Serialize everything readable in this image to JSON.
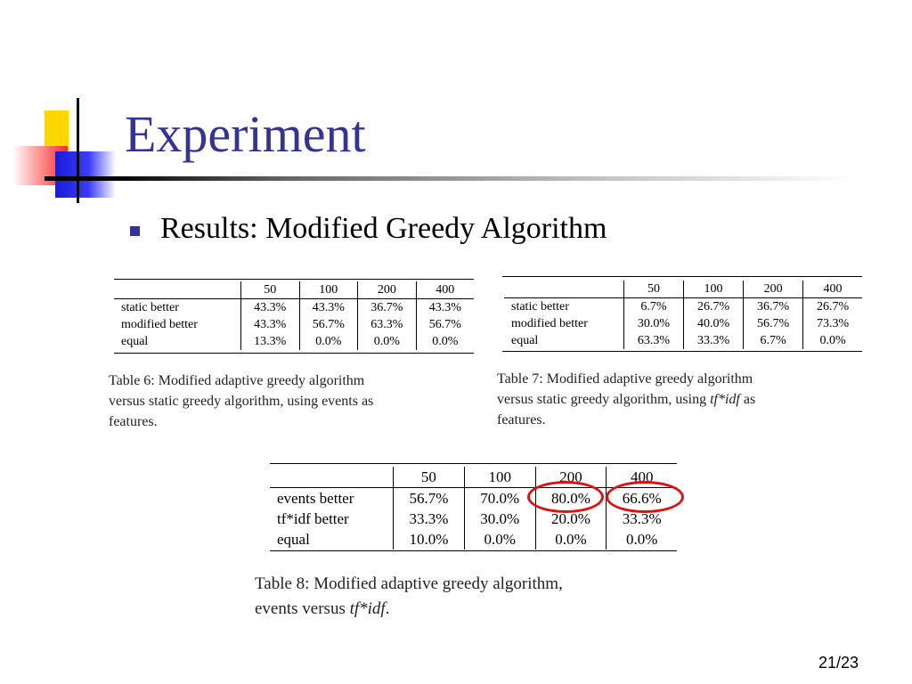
{
  "slide": {
    "title": "Experiment",
    "bullet": "Results: Modified Greedy Algorithm",
    "page_number": "21/23"
  },
  "table6": {
    "columns": [
      "",
      "50",
      "100",
      "200",
      "400"
    ],
    "rows": [
      {
        "label": "static better",
        "values": [
          "43.3%",
          "43.3%",
          "36.7%",
          "43.3%"
        ]
      },
      {
        "label": "modified better",
        "values": [
          "43.3%",
          "56.7%",
          "63.3%",
          "56.7%"
        ]
      },
      {
        "label": "equal",
        "values": [
          "13.3%",
          "0.0%",
          "0.0%",
          "0.0%"
        ]
      }
    ],
    "caption_lines": [
      "Table 6:  Modified adaptive greedy algorithm",
      "versus static greedy algorithm, using events as",
      "features."
    ]
  },
  "table7": {
    "columns": [
      "",
      "50",
      "100",
      "200",
      "400"
    ],
    "rows": [
      {
        "label": "static better",
        "values": [
          "6.7%",
          "26.7%",
          "36.7%",
          "26.7%"
        ]
      },
      {
        "label": "modified better",
        "values": [
          "30.0%",
          "40.0%",
          "56.7%",
          "73.3%"
        ]
      },
      {
        "label": "equal",
        "values": [
          "63.3%",
          "33.3%",
          "6.7%",
          "0.0%"
        ]
      }
    ],
    "caption_line1": "Table 7:  Modified adaptive greedy algorithm",
    "caption_line2_pre": "versus static greedy algorithm, using ",
    "caption_line2_em": "tf*idf",
    "caption_line2_post": " as",
    "caption_line3": "features."
  },
  "table8": {
    "columns": [
      "",
      "50",
      "100",
      "200",
      "400"
    ],
    "rows": [
      {
        "label": "events better",
        "values": [
          "56.7%",
          "70.0%",
          "80.0%",
          "66.6%"
        ]
      },
      {
        "label": "tf*idf better",
        "values": [
          "33.3%",
          "30.0%",
          "20.0%",
          "33.3%"
        ]
      },
      {
        "label": "equal",
        "values": [
          "10.0%",
          "0.0%",
          "0.0%",
          "0.0%"
        ]
      }
    ],
    "caption_line1": "Table 8:  Modified adaptive greedy algorithm,",
    "caption_line2_pre": "events versus ",
    "caption_line2_em": "tf*idf",
    "caption_line2_post": ".",
    "highlight_color": "#e01010"
  }
}
